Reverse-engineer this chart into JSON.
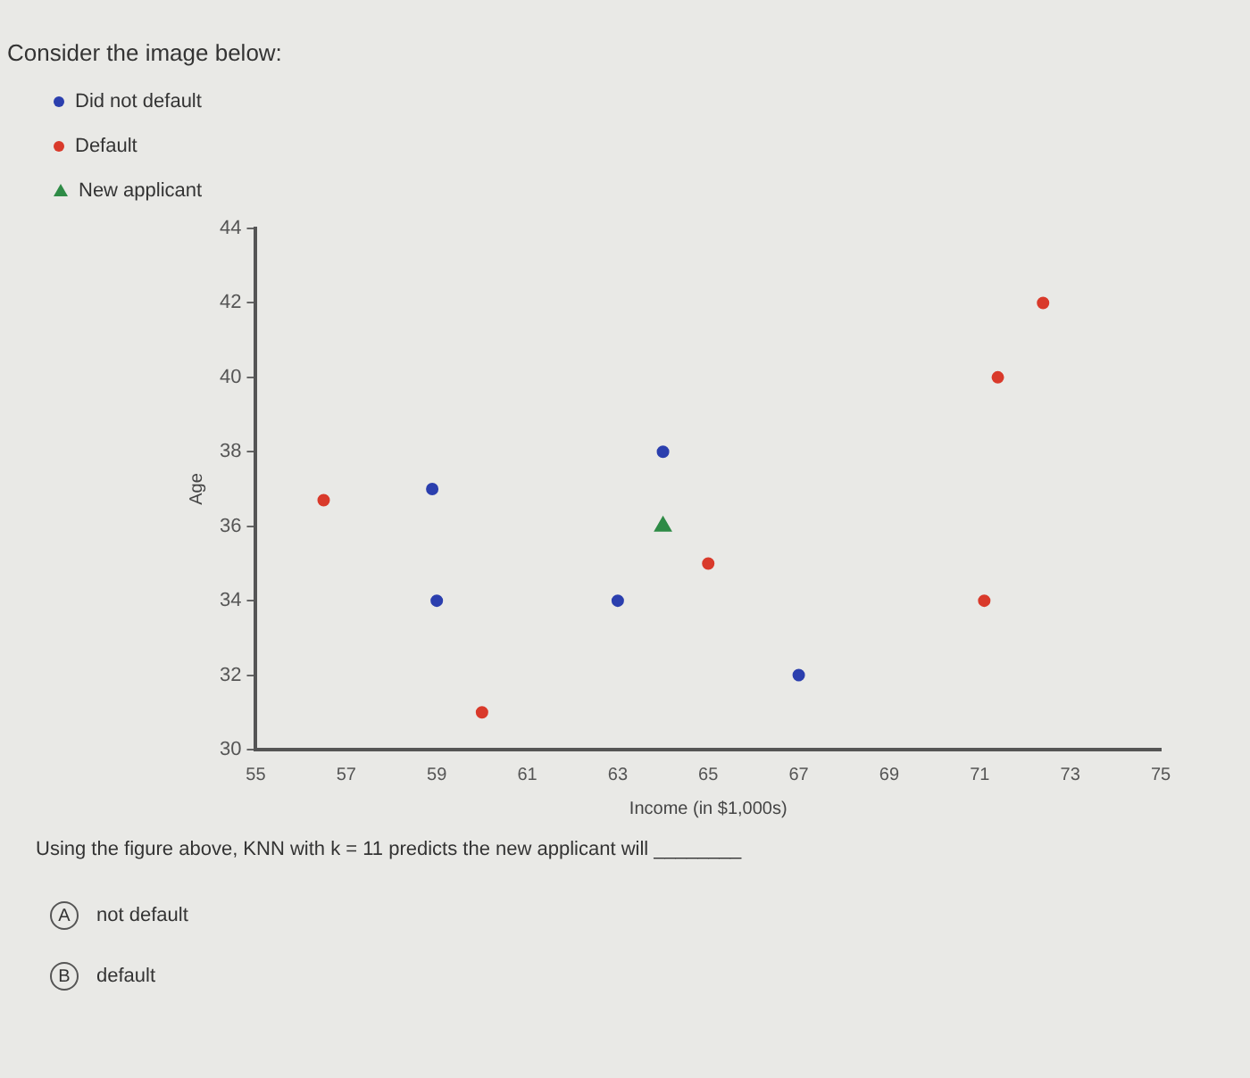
{
  "chart_data": {
    "type": "scatter",
    "title": "Consider the image below:",
    "xlabel": "Income (in $1,000s)",
    "ylabel": "Age",
    "legend": "top left",
    "series": [
      {
        "name": "Did not default",
        "color": "#2b3fae",
        "marker": "circle",
        "x": [
          58.9,
          59,
          63,
          64,
          67
        ],
        "values": [
          37,
          34,
          34,
          38,
          32
        ]
      },
      {
        "name": "Default",
        "color": "#d93a2b",
        "marker": "circle",
        "x": [
          56.5,
          60,
          65,
          71.1,
          71.4,
          72.4
        ],
        "values": [
          36.7,
          31,
          35,
          34,
          40,
          42
        ]
      },
      {
        "name": "New applicant",
        "color": "#2e8b46",
        "marker": "triangle",
        "x": [
          64
        ],
        "values": [
          36
        ]
      }
    ],
    "xlim": [
      55,
      75
    ],
    "xticks": [
      55,
      57,
      59,
      61,
      63,
      65,
      67,
      69,
      71,
      73,
      75
    ],
    "ylim": [
      30,
      44
    ],
    "yticks": [
      30,
      32,
      34,
      36,
      38,
      40,
      42,
      44
    ],
    "grid": false,
    "annotations": [
      "Using the figure above, KNN with k = 11 predicts the new applicant will ________",
      "A",
      "not default",
      "B",
      "default"
    ]
  }
}
